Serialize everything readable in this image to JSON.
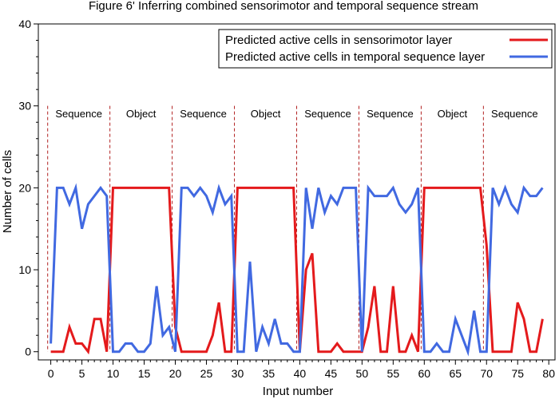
{
  "chart_data": {
    "type": "line",
    "title": "Figure 6' Inferring combined sensorimotor and temporal sequence stream",
    "xlabel": "Input number",
    "ylabel": "Number of cells",
    "xlim": [
      -2,
      81
    ],
    "ylim": [
      -1,
      40
    ],
    "xticks": [
      0,
      5,
      10,
      15,
      20,
      25,
      30,
      35,
      40,
      45,
      50,
      55,
      60,
      65,
      70,
      75,
      80
    ],
    "yticks": [
      0,
      10,
      20,
      30,
      40
    ],
    "legend_position": "top-right",
    "series": [
      {
        "name": "Predicted active cells in sensorimotor layer",
        "color": "#e41a1c",
        "x": [
          0,
          1,
          2,
          3,
          4,
          5,
          6,
          7,
          8,
          9,
          10,
          11,
          12,
          13,
          14,
          15,
          16,
          17,
          18,
          19,
          20,
          21,
          22,
          23,
          24,
          25,
          26,
          27,
          28,
          29,
          30,
          31,
          32,
          33,
          34,
          35,
          36,
          37,
          38,
          39,
          40,
          41,
          42,
          43,
          44,
          45,
          46,
          47,
          48,
          49,
          50,
          51,
          52,
          53,
          54,
          55,
          56,
          57,
          58,
          59,
          60,
          61,
          62,
          63,
          64,
          65,
          66,
          67,
          68,
          69,
          70,
          71,
          72,
          73,
          74,
          75,
          76,
          77,
          78,
          79
        ],
        "values": [
          0,
          0,
          0,
          3,
          1,
          1,
          0,
          4,
          4,
          0,
          20,
          20,
          20,
          20,
          20,
          20,
          20,
          20,
          20,
          20,
          3,
          0,
          0,
          0,
          0,
          0,
          2,
          6,
          0,
          0,
          20,
          20,
          20,
          20,
          20,
          20,
          20,
          20,
          20,
          20,
          0,
          10,
          12,
          0,
          0,
          0,
          1,
          0,
          0,
          0,
          0,
          3,
          8,
          0,
          0,
          8,
          0,
          0,
          2,
          0,
          20,
          20,
          20,
          20,
          20,
          20,
          20,
          20,
          20,
          20,
          13,
          0,
          0,
          0,
          0,
          6,
          4,
          0,
          0,
          4
        ]
      },
      {
        "name": "Predicted active cells in temporal sequence layer",
        "color": "#4169e1",
        "x": [
          0,
          1,
          2,
          3,
          4,
          5,
          6,
          7,
          8,
          9,
          10,
          11,
          12,
          13,
          14,
          15,
          16,
          17,
          18,
          19,
          20,
          21,
          22,
          23,
          24,
          25,
          26,
          27,
          28,
          29,
          30,
          31,
          32,
          33,
          34,
          35,
          36,
          37,
          38,
          39,
          40,
          41,
          42,
          43,
          44,
          45,
          46,
          47,
          48,
          49,
          50,
          51,
          52,
          53,
          54,
          55,
          56,
          57,
          58,
          59,
          60,
          61,
          62,
          63,
          64,
          65,
          66,
          67,
          68,
          69,
          70,
          71,
          72,
          73,
          74,
          75,
          76,
          77,
          78,
          79
        ],
        "values": [
          1,
          20,
          20,
          18,
          20,
          15,
          18,
          19,
          20,
          19,
          0,
          0,
          1,
          1,
          0,
          0,
          1,
          8,
          2,
          3,
          0,
          20,
          20,
          19,
          20,
          19,
          17,
          20,
          18,
          19,
          0,
          0,
          11,
          0,
          3,
          1,
          4,
          1,
          1,
          0,
          0,
          20,
          15,
          20,
          17,
          19,
          18,
          20,
          20,
          20,
          0,
          20,
          19,
          19,
          19,
          20,
          18,
          17,
          18,
          20,
          0,
          0,
          1,
          0,
          0,
          4,
          2,
          0,
          5,
          0,
          0,
          20,
          18,
          20,
          18,
          17,
          20,
          19,
          19,
          20
        ]
      }
    ],
    "boundaries": [
      -0.5,
      9.5,
      19.5,
      29.5,
      39.5,
      49.5,
      59.5,
      69.5
    ],
    "segments": [
      {
        "label": "Sequence",
        "center": 4.5
      },
      {
        "label": "Object",
        "center": 14.5
      },
      {
        "label": "Sequence",
        "center": 24.5
      },
      {
        "label": "Object",
        "center": 34.5
      },
      {
        "label": "Sequence",
        "center": 44.5
      },
      {
        "label": "Sequence",
        "center": 54.5
      },
      {
        "label": "Object",
        "center": 64.5
      },
      {
        "label": "Sequence",
        "center": 74.5
      }
    ],
    "segment_label_y": 29
  }
}
